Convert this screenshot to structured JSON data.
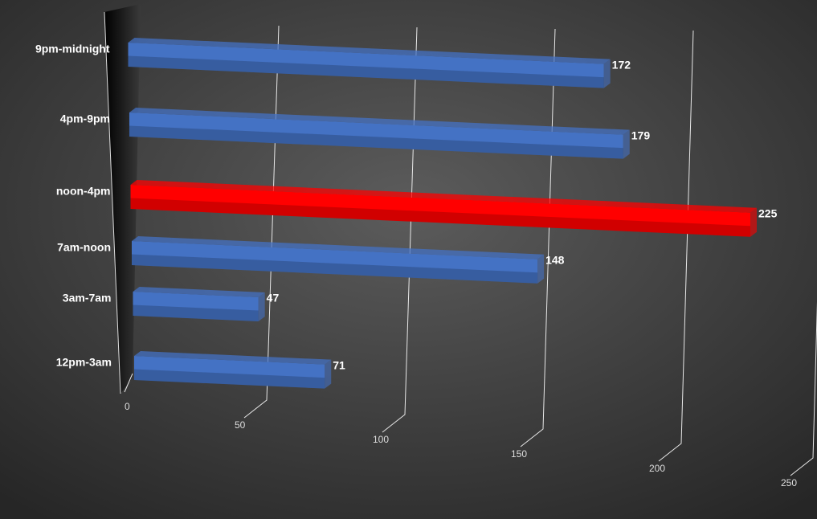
{
  "chart_data": {
    "type": "bar",
    "orientation": "horizontal",
    "categories": [
      "12pm-3am",
      "3am-7am",
      "7am-noon",
      "noon-4pm",
      "4pm-9pm",
      "9pm-midnight"
    ],
    "values": [
      71,
      47,
      148,
      225,
      179,
      172
    ],
    "colors": [
      "#4472c4",
      "#4472c4",
      "#4472c4",
      "#ff0000",
      "#4472c4",
      "#4472c4"
    ],
    "xlim": [
      0,
      250
    ],
    "xticks": [
      0,
      50,
      100,
      150,
      200,
      250
    ],
    "grid": true
  }
}
